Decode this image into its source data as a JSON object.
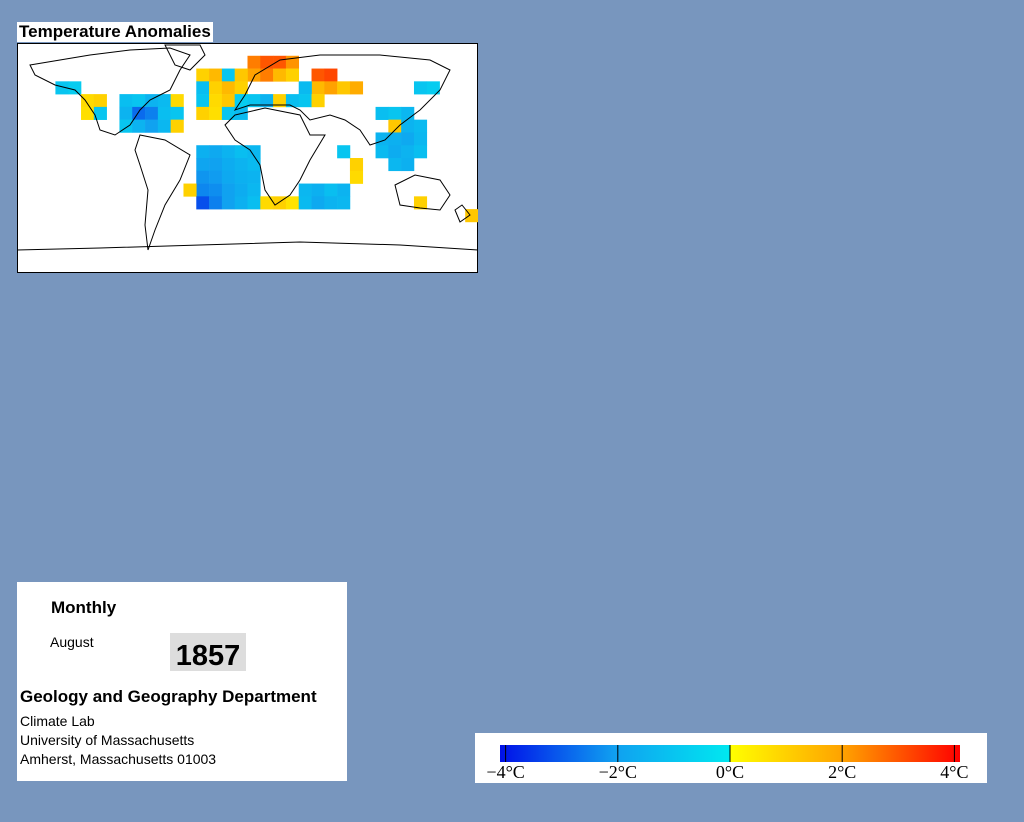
{
  "title": "Temperature Anomalies",
  "map": {
    "cells": [
      [
        0,
        80,
        2.5
      ],
      [
        10,
        80,
        3
      ],
      [
        20,
        80,
        3
      ],
      [
        30,
        80,
        2.2
      ],
      [
        0,
        70,
        2
      ],
      [
        10,
        70,
        2.5
      ],
      [
        20,
        70,
        1.5
      ],
      [
        30,
        70,
        1
      ],
      [
        50,
        70,
        3
      ],
      [
        60,
        70,
        3.2
      ],
      [
        50,
        60,
        1.5
      ],
      [
        60,
        60,
        2
      ],
      [
        70,
        60,
        1.2
      ],
      [
        80,
        60,
        1.8
      ],
      [
        -40,
        70,
        1
      ],
      [
        -30,
        70,
        1.5
      ],
      [
        -20,
        70,
        -1
      ],
      [
        -10,
        70,
        1.2
      ],
      [
        -40,
        60,
        -1.2
      ],
      [
        -30,
        60,
        1
      ],
      [
        -20,
        60,
        1.5
      ],
      [
        -10,
        60,
        1
      ],
      [
        -40,
        50,
        -1
      ],
      [
        -30,
        50,
        0.8
      ],
      [
        -20,
        50,
        1.2
      ],
      [
        -10,
        50,
        -0.8
      ],
      [
        -40,
        40,
        1
      ],
      [
        -30,
        40,
        0.7
      ],
      [
        -20,
        40,
        -1
      ],
      [
        -10,
        40,
        -1.3
      ],
      [
        0,
        50,
        -1
      ],
      [
        10,
        50,
        -1.5
      ],
      [
        20,
        50,
        1
      ],
      [
        30,
        50,
        -1.2
      ],
      [
        40,
        60,
        -1.3
      ],
      [
        40,
        50,
        -1
      ],
      [
        50,
        50,
        1
      ],
      [
        -150,
        60,
        -1
      ],
      [
        -140,
        60,
        -0.8
      ],
      [
        -130,
        50,
        0.8
      ],
      [
        -120,
        50,
        1
      ],
      [
        -130,
        40,
        0.7
      ],
      [
        -120,
        40,
        -1
      ],
      [
        -100,
        50,
        -1.2
      ],
      [
        -90,
        50,
        -1
      ],
      [
        -80,
        50,
        -1.5
      ],
      [
        -70,
        50,
        -1.3
      ],
      [
        -60,
        50,
        0.8
      ],
      [
        -100,
        40,
        -1.5
      ],
      [
        -90,
        40,
        -2.8
      ],
      [
        -80,
        40,
        -2.5
      ],
      [
        -70,
        40,
        -1.2
      ],
      [
        -60,
        40,
        -1
      ],
      [
        -100,
        30,
        -1
      ],
      [
        -90,
        30,
        -1.5
      ],
      [
        -80,
        30,
        -2
      ],
      [
        -70,
        30,
        -1.4
      ],
      [
        -60,
        30,
        1
      ],
      [
        -40,
        10,
        -1.6
      ],
      [
        -30,
        10,
        -1.8
      ],
      [
        -20,
        10,
        -1.5
      ],
      [
        -10,
        10,
        -1.2
      ],
      [
        0,
        10,
        -1.4
      ],
      [
        -40,
        0,
        -1.9
      ],
      [
        -30,
        0,
        -2
      ],
      [
        -20,
        0,
        -1.7
      ],
      [
        -10,
        0,
        -1.5
      ],
      [
        0,
        0,
        -1.3
      ],
      [
        -40,
        -10,
        -2.2
      ],
      [
        -30,
        -10,
        -2.1
      ],
      [
        -20,
        -10,
        -1.8
      ],
      [
        -10,
        -10,
        -1.6
      ],
      [
        0,
        -10,
        -1.5
      ],
      [
        -40,
        -20,
        -2.4
      ],
      [
        -30,
        -20,
        -2.3
      ],
      [
        -20,
        -20,
        -2
      ],
      [
        -10,
        -20,
        -1.7
      ],
      [
        0,
        -20,
        -1.4
      ],
      [
        -50,
        -20,
        1
      ],
      [
        -40,
        -30,
        -3.2
      ],
      [
        -30,
        -30,
        -2.5
      ],
      [
        -20,
        -30,
        -2
      ],
      [
        -10,
        -30,
        -1.6
      ],
      [
        0,
        -30,
        -1.2
      ],
      [
        10,
        -30,
        0.8
      ],
      [
        20,
        -30,
        1
      ],
      [
        30,
        -30,
        0.6
      ],
      [
        40,
        -20,
        -1.4
      ],
      [
        50,
        -20,
        -1.6
      ],
      [
        60,
        -20,
        -1.2
      ],
      [
        70,
        -20,
        -1.5
      ],
      [
        40,
        -30,
        -1.3
      ],
      [
        50,
        -30,
        -1.8
      ],
      [
        60,
        -30,
        -1.5
      ],
      [
        70,
        -30,
        -1.4
      ],
      [
        80,
        0,
        1
      ],
      [
        80,
        -10,
        0.8
      ],
      [
        70,
        10,
        -1
      ],
      [
        100,
        40,
        -1.2
      ],
      [
        110,
        40,
        -1
      ],
      [
        120,
        40,
        -1.4
      ],
      [
        110,
        30,
        1.2
      ],
      [
        120,
        30,
        -1.5
      ],
      [
        130,
        30,
        -1.3
      ],
      [
        100,
        20,
        -1.5
      ],
      [
        110,
        20,
        -1.6
      ],
      [
        120,
        20,
        -1.8
      ],
      [
        130,
        20,
        -1.4
      ],
      [
        100,
        10,
        -1.3
      ],
      [
        110,
        10,
        -1.7
      ],
      [
        120,
        10,
        -1.5
      ],
      [
        130,
        10,
        -1.2
      ],
      [
        110,
        0,
        -1.4
      ],
      [
        120,
        0,
        -1.6
      ],
      [
        130,
        60,
        -1
      ],
      [
        140,
        60,
        -0.8
      ],
      [
        130,
        -30,
        1
      ],
      [
        170,
        -40,
        1.2
      ]
    ]
  },
  "colorbar": {
    "range": [
      -4.1,
      4.1
    ],
    "negative_colors": [
      "#0010e8",
      "#10a0f0",
      "#00e8f0"
    ],
    "positive_colors": [
      "#ffff00",
      "#ffa000",
      "#ff0000"
    ],
    "ticks": [
      {
        "value": -4,
        "label": "−4°C"
      },
      {
        "value": -2,
        "label": "−2°C"
      },
      {
        "value": 0,
        "label": "0°C"
      },
      {
        "value": 2,
        "label": "2°C"
      },
      {
        "value": 4,
        "label": "4°C"
      }
    ]
  },
  "panel": {
    "frequency": "Monthly",
    "month": "August",
    "year": "1857",
    "department": "Geology and Geography Department",
    "address": [
      "Climate Lab",
      "University of Massachusetts",
      "Amherst, Massachusetts 01003"
    ]
  }
}
